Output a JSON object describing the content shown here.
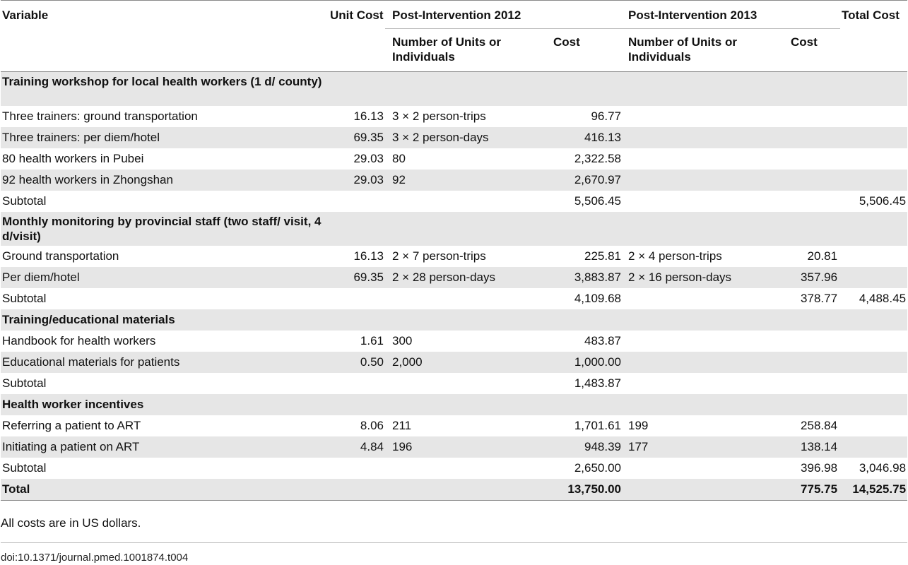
{
  "header": {
    "variable": "Variable",
    "unit_cost": "Unit Cost",
    "post_2012": "Post-Intervention 2012",
    "post_2013": "Post-Intervention 2013",
    "total_cost": "Total Cost",
    "units_2012": "Number of Units or Individuals",
    "cost_2012": "Cost",
    "units_2013": "Number of Units or Individuals",
    "cost_2013": "Cost"
  },
  "rows": [
    {
      "label": "Training workshop for local health workers (1 d/ county)",
      "type": "section"
    },
    {
      "label": "Three trainers: ground transportation",
      "unit_cost": "16.13",
      "units_2012": "3 × 2 person-trips",
      "cost_2012": "96.77",
      "units_2013": "",
      "cost_2013": "",
      "total": ""
    },
    {
      "label": "Three trainers: per diem/hotel",
      "unit_cost": "69.35",
      "units_2012": "3 × 2 person-days",
      "cost_2012": "416.13",
      "units_2013": "",
      "cost_2013": "",
      "total": ""
    },
    {
      "label": "80 health workers in Pubei",
      "unit_cost": "29.03",
      "units_2012": "80",
      "cost_2012": "2,322.58",
      "units_2013": "",
      "cost_2013": "",
      "total": ""
    },
    {
      "label": "92 health workers in Zhongshan",
      "unit_cost": "29.03",
      "units_2012": "92",
      "cost_2012": "2,670.97",
      "units_2013": "",
      "cost_2013": "",
      "total": ""
    },
    {
      "label": "Subtotal",
      "unit_cost": "",
      "units_2012": "",
      "cost_2012": "5,506.45",
      "units_2013": "",
      "cost_2013": "",
      "total": "5,506.45"
    },
    {
      "label": "Monthly monitoring by provincial staff (two staff/ visit, 4 d/visit)",
      "type": "section"
    },
    {
      "label": "Ground transportation",
      "unit_cost": "16.13",
      "units_2012": "2 × 7 person-trips",
      "cost_2012": "225.81",
      "units_2013": "2 × 4 person-trips",
      "cost_2013": "20.81",
      "total": ""
    },
    {
      "label": "Per diem/hotel",
      "unit_cost": "69.35",
      "units_2012": "2 × 28 person-days",
      "cost_2012": "3,883.87",
      "units_2013": "2 × 16 person-days",
      "cost_2013": "357.96",
      "total": ""
    },
    {
      "label": "Subtotal",
      "unit_cost": "",
      "units_2012": "",
      "cost_2012": "4,109.68",
      "units_2013": "",
      "cost_2013": "378.77",
      "total": "4,488.45"
    },
    {
      "label": "Training/educational materials",
      "type": "section"
    },
    {
      "label": "Handbook for health workers",
      "unit_cost": "1.61",
      "units_2012": "300",
      "cost_2012": "483.87",
      "units_2013": "",
      "cost_2013": "",
      "total": ""
    },
    {
      "label": "Educational materials for patients",
      "unit_cost": "0.50",
      "units_2012": "2,000",
      "cost_2012": "1,000.00",
      "units_2013": "",
      "cost_2013": "",
      "total": ""
    },
    {
      "label": "Subtotal",
      "unit_cost": "",
      "units_2012": "",
      "cost_2012": "1,483.87",
      "units_2013": "",
      "cost_2013": "",
      "total": ""
    },
    {
      "label": "Health worker incentives",
      "type": "section"
    },
    {
      "label": "Referring a patient to ART",
      "unit_cost": "8.06",
      "units_2012": "211",
      "cost_2012": "1,701.61",
      "units_2013": "199",
      "cost_2013": "258.84",
      "total": ""
    },
    {
      "label": "Initiating a patient on ART",
      "unit_cost": "4.84",
      "units_2012": "196",
      "cost_2012": "948.39",
      "units_2013": "177",
      "cost_2013": "138.14",
      "total": ""
    },
    {
      "label": "Subtotal",
      "unit_cost": "",
      "units_2012": "",
      "cost_2012": "2,650.00",
      "units_2013": "",
      "cost_2013": "396.98",
      "total": "3,046.98"
    },
    {
      "label": "Total",
      "type": "total",
      "unit_cost": "",
      "units_2012": "",
      "cost_2012": "13,750.00",
      "units_2013": "",
      "cost_2013": "775.75",
      "total": "14,525.75"
    }
  ],
  "footnote": "All costs are in US dollars.",
  "doi": "doi:10.1371/journal.pmed.1001874.t004"
}
